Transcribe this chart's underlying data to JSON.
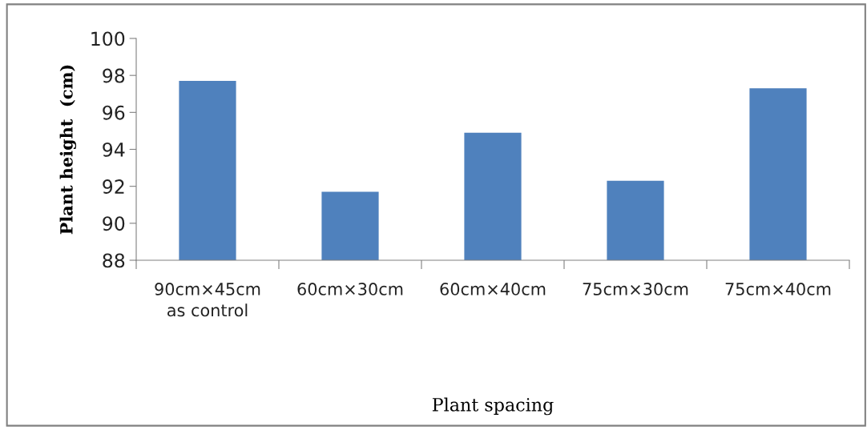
{
  "chart_data": {
    "type": "bar",
    "xlabel": "Plant spacing",
    "ylabel": "Plant height  (cm)",
    "categories": [
      "90cm×45cm\nas control",
      "60cm×30cm",
      "60cm×40cm",
      "75cm×30cm",
      "75cm×40cm"
    ],
    "values": [
      97.7,
      91.7,
      94.9,
      92.3,
      97.3
    ],
    "color": "#4f81bd",
    "ylim": [
      88,
      100
    ],
    "yticks": [
      88,
      90,
      92,
      94,
      96,
      98,
      100
    ],
    "grid": false
  }
}
